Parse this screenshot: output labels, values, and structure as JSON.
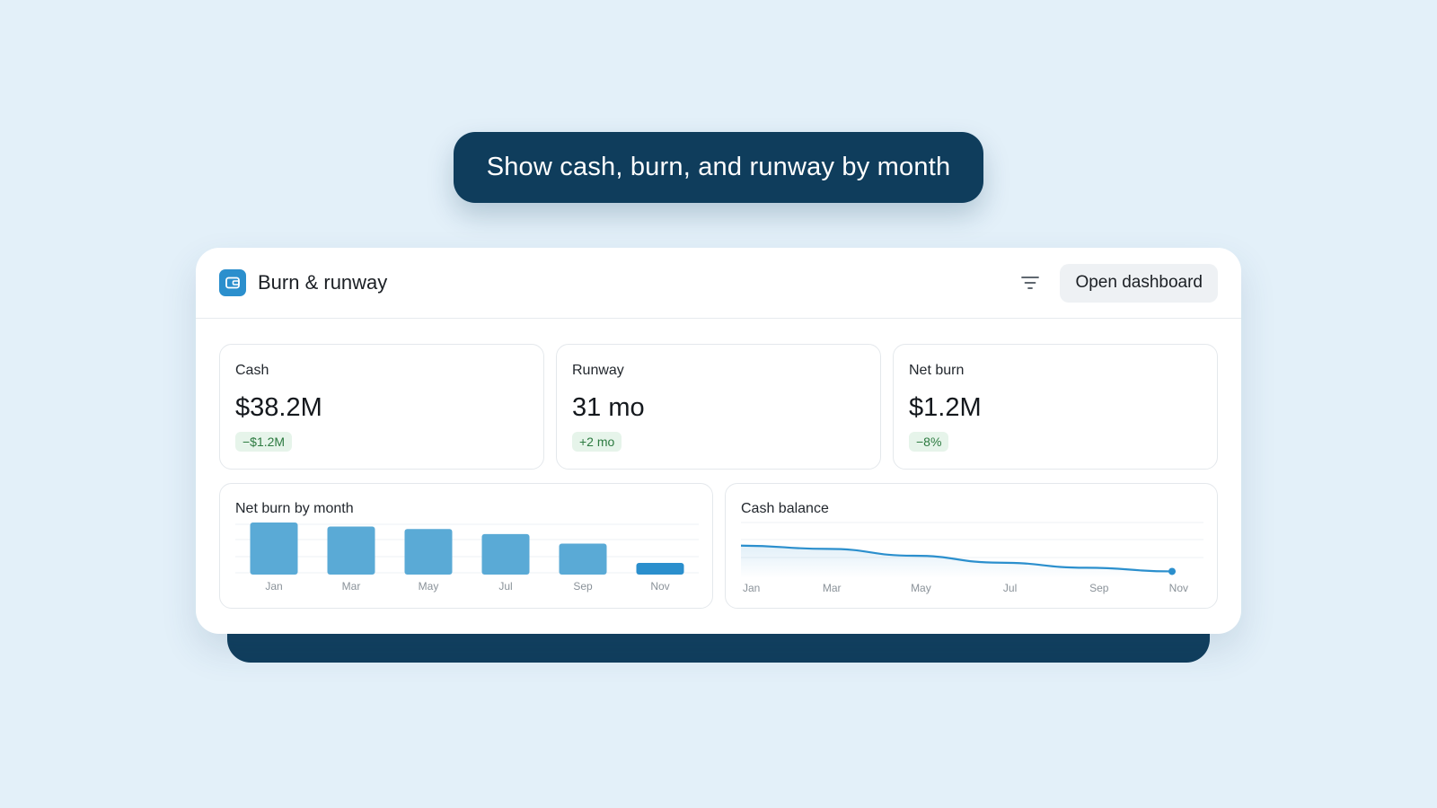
{
  "prompt": {
    "text": "Show cash, burn, and runway by month"
  },
  "header": {
    "title": "Burn & runway",
    "app_icon": "wallet-icon",
    "filter_icon": "filter-icon",
    "open_label": "Open dashboard"
  },
  "kpis": [
    {
      "label": "Cash",
      "value": "$38.2M",
      "delta": "−$1.2M"
    },
    {
      "label": "Runway",
      "value": "31 mo",
      "delta": "+2 mo"
    },
    {
      "label": "Net burn",
      "value": "$1.2M",
      "delta": "−8%"
    }
  ],
  "colors": {
    "accent": "#2b8fcd",
    "bar": "#5aaad6",
    "bar_highlight": "#2b8fcd",
    "navy": "#0f3d5c",
    "delta_bg": "#e6f4ea",
    "delta_text": "#2c7a40"
  },
  "chart_data": [
    {
      "type": "bar",
      "title": "Net burn by month",
      "categories": [
        "Jan",
        "Mar",
        "May",
        "Jul",
        "Sep",
        "Nov"
      ],
      "values": [
        1.0,
        0.92,
        0.87,
        0.77,
        0.58,
        0.25
      ],
      "highlight_index": 5,
      "ylim": [
        0,
        1
      ],
      "grid": true
    },
    {
      "type": "area",
      "title": "Cash balance",
      "categories": [
        "Jan",
        "Mar",
        "May",
        "Jul",
        "Sep",
        "Nov"
      ],
      "values": [
        1.0,
        0.93,
        0.78,
        0.63,
        0.52,
        0.44
      ],
      "ylim": [
        0,
        1.6
      ],
      "end_marker": true,
      "grid": true
    }
  ]
}
